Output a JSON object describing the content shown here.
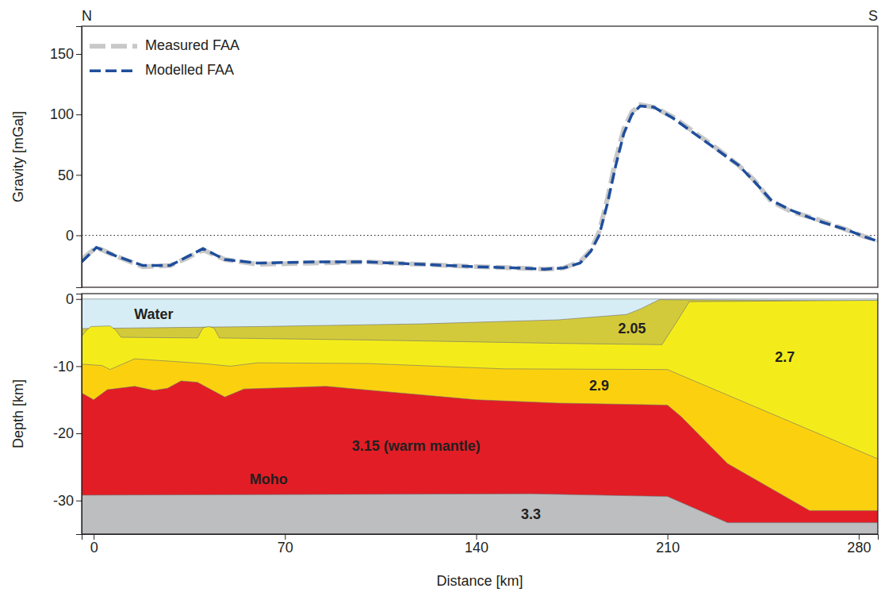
{
  "chart_data": [
    {
      "type": "line",
      "y_label": "Gravity [mGal]",
      "xlim": [
        -4.4,
        287
      ],
      "ylim": [
        -43,
        173
      ],
      "yticks": [
        0,
        50,
        100,
        150
      ],
      "tick_labels": "y",
      "legend": "upper left",
      "reference_lines": [
        0
      ],
      "annotations": [
        {
          "text": "N",
          "x": -4.4
        },
        {
          "text": "S",
          "x": 287
        }
      ],
      "series": [
        {
          "name": "Measured FAA",
          "color": "#c8c8c8",
          "line_style": "dashed",
          "x": [
            -4.4,
            1,
            8,
            18,
            28,
            34,
            40,
            48,
            60,
            80,
            100,
            120,
            140,
            155,
            165,
            172,
            178,
            182,
            185,
            188,
            191,
            194,
            197,
            200,
            205,
            212,
            220,
            228,
            236,
            242,
            248,
            255,
            265,
            275,
            282,
            287
          ],
          "values": [
            -20,
            -10,
            -17,
            -26,
            -25,
            -19,
            -12,
            -20,
            -24,
            -23,
            -22,
            -24,
            -26,
            -27,
            -28,
            -27,
            -22,
            -12,
            3,
            30,
            62,
            88,
            102,
            108,
            106,
            98,
            85,
            72,
            58,
            45,
            28,
            20,
            13,
            5,
            -1,
            -4
          ]
        },
        {
          "name": "Modelled FAA",
          "color": "#1f4e9c",
          "line_style": "dashed",
          "x": [
            -4.4,
            1,
            8,
            18,
            28,
            34,
            40,
            48,
            60,
            80,
            100,
            120,
            140,
            155,
            165,
            172,
            178,
            182,
            185,
            188,
            191,
            194,
            197,
            200,
            205,
            212,
            220,
            228,
            236,
            242,
            248,
            255,
            265,
            275,
            282,
            287
          ],
          "values": [
            -22,
            -10,
            -17,
            -25,
            -25,
            -18,
            -11,
            -20,
            -23,
            -22,
            -22,
            -24,
            -26,
            -27,
            -28,
            -27,
            -23,
            -13,
            0,
            26,
            57,
            84,
            100,
            107,
            106,
            97,
            84,
            71,
            58,
            44,
            29,
            21,
            12,
            5,
            -1,
            -5
          ]
        }
      ]
    },
    {
      "type": "area",
      "x_label": "Distance [km]",
      "y_label": "Depth [km]",
      "xlim": [
        -4.4,
        287
      ],
      "ylim": [
        -35,
        0.8
      ],
      "xticks": [
        0,
        70,
        140,
        210,
        280
      ],
      "yticks": [
        0,
        -10,
        -20,
        -30
      ],
      "layers": [
        {
          "label": "Water",
          "color": "#d7edf5",
          "x": [
            -4.4,
            287
          ],
          "top": [
            0,
            0
          ],
          "label_at": [
            22,
            -2.4
          ]
        },
        {
          "label": "2.05",
          "color": "#d3ca3b",
          "x": [
            -4.4,
            60,
            120,
            170,
            195,
            200,
            207,
            287
          ],
          "top": [
            -4.4,
            -4.1,
            -3.7,
            -3.1,
            -2.3,
            -1.5,
            -0.1,
            -0.3
          ],
          "label_at": [
            197,
            -4.6
          ]
        },
        {
          "label": "2.7",
          "color": "#f4ec1a",
          "x": [
            -4.4,
            -3,
            -1,
            6,
            8,
            10,
            38,
            40,
            42,
            44,
            46,
            100,
            170,
            208,
            214,
            218,
            287
          ],
          "top": [
            -5.6,
            -4.8,
            -4.1,
            -4.0,
            -4.6,
            -5.7,
            -5.8,
            -4.3,
            -4.1,
            -4.3,
            -5.8,
            -6.1,
            -6.6,
            -6.8,
            -3.0,
            -0.4,
            -0.2
          ],
          "label_at": [
            253,
            -8.8
          ]
        },
        {
          "label": "2.9",
          "color": "#fbd10f",
          "x": [
            -4.4,
            3,
            6,
            15,
            40,
            50,
            60,
            100,
            150,
            210,
            287
          ],
          "top": [
            -9.7,
            -9.9,
            -10.5,
            -8.9,
            -9.6,
            -10.0,
            -9.5,
            -9.6,
            -10.4,
            -10.5,
            -23.8
          ],
          "label_at": [
            185,
            -13.0
          ]
        },
        {
          "label": "3.15 (warm mantle)",
          "color": "#e31d25",
          "x": [
            -4.4,
            0,
            5,
            15,
            22,
            27,
            32,
            38,
            48,
            55,
            85,
            140,
            170,
            210,
            215,
            232,
            262,
            287
          ],
          "top": [
            -14.0,
            -15.0,
            -13.5,
            -13.0,
            -13.6,
            -13.3,
            -12.2,
            -12.4,
            -14.6,
            -13.4,
            -13.0,
            -15.0,
            -15.5,
            -15.8,
            -17.5,
            -24.5,
            -31.5,
            -31.5
          ],
          "label_at": [
            118,
            -22.0
          ]
        },
        {
          "label": "3.3",
          "color": "#bcbec0",
          "x": [
            -4.4,
            160,
            210,
            232,
            287
          ],
          "top": [
            -29.2,
            -29.0,
            -29.4,
            -33.3,
            -33.3
          ],
          "label_at": [
            160,
            -32.2
          ]
        }
      ],
      "annotations": [
        {
          "text": "Moho",
          "x": 64,
          "y": -27.0
        }
      ]
    }
  ]
}
